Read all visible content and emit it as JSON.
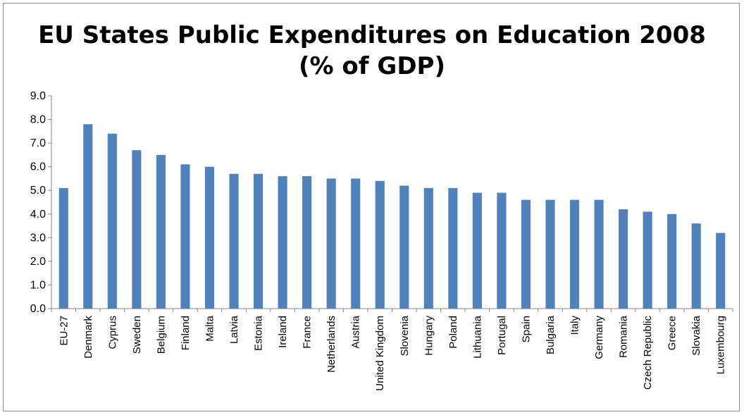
{
  "chart_data": {
    "type": "bar",
    "title_line1": "EU States Public Expenditures on Education 2008",
    "title_line2": "(% of GDP)",
    "categories": [
      "EU-27",
      "Denmark",
      "Cyprus",
      "Sweden",
      "Belgium",
      "Finland",
      "Malta",
      "Latvia",
      "Estonia",
      "Ireland",
      "France",
      "Netherlands",
      "Austria",
      "United Kingdom",
      "Slovenia",
      "Hungary",
      "Poland",
      "Lithuania",
      "Portugal",
      "Spain",
      "Bulgaria",
      "Italy",
      "Germany",
      "Romania",
      "Czech Republic",
      "Greece",
      "Slovakia",
      "Luxembourg"
    ],
    "values": [
      5.1,
      7.8,
      7.4,
      6.7,
      6.5,
      6.1,
      6.0,
      5.7,
      5.7,
      5.6,
      5.6,
      5.5,
      5.5,
      5.4,
      5.2,
      5.1,
      5.1,
      4.9,
      4.9,
      4.6,
      4.6,
      4.6,
      4.6,
      4.2,
      4.1,
      4.0,
      3.6,
      3.2
    ],
    "ylim": [
      0,
      9
    ],
    "yticks": [
      "0.0",
      "1.0",
      "2.0",
      "3.0",
      "4.0",
      "5.0",
      "6.0",
      "7.0",
      "8.0",
      "9.0"
    ],
    "bar_color": "#4f81bd",
    "grid": false,
    "legend": "none"
  }
}
